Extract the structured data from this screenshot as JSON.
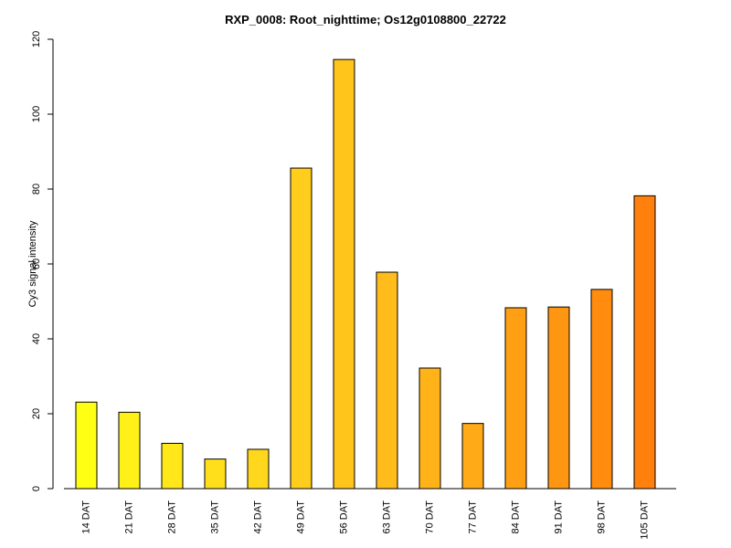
{
  "chart_data": {
    "type": "bar",
    "title": "RXP_0008: Root_nighttime; Os12g0108800_22722",
    "xlabel": "",
    "ylabel": "Cy3 signal intensity",
    "ylim": [
      0,
      120
    ],
    "yticks": [
      0,
      20,
      40,
      60,
      80,
      100,
      120
    ],
    "grid": false,
    "categories": [
      "14 DAT",
      "21 DAT",
      "28 DAT",
      "35 DAT",
      "42 DAT",
      "49 DAT",
      "56 DAT",
      "63 DAT",
      "70 DAT",
      "77 DAT",
      "84 DAT",
      "91 DAT",
      "98 DAT",
      "105 DAT"
    ],
    "values": [
      23.1,
      20.4,
      12.1,
      7.9,
      10.5,
      85.6,
      114.6,
      57.8,
      32.2,
      17.4,
      48.3,
      48.5,
      53.2,
      78.2
    ],
    "colors": [
      "#FFFF14",
      "#FFF018",
      "#FFE71A",
      "#FFDF1B",
      "#FFD71C",
      "#FFCE1C",
      "#FFC51B",
      "#FFBC1A",
      "#FFB318",
      "#FFAA16",
      "#FFA014",
      "#FF9611",
      "#FF8C0E",
      "#FF800C"
    ]
  }
}
